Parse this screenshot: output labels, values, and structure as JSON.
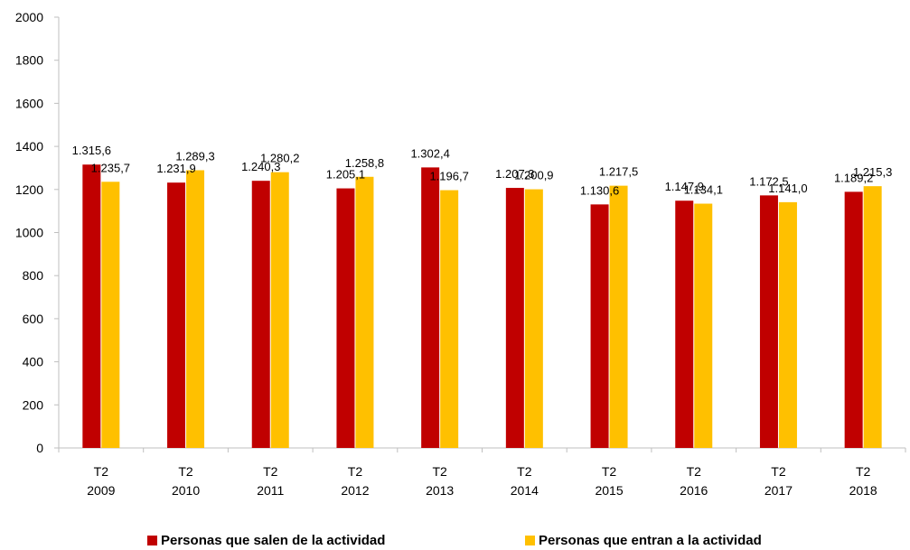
{
  "chart_data": {
    "type": "bar",
    "categories": [
      [
        "T2",
        "2009"
      ],
      [
        "T2",
        "2010"
      ],
      [
        "T2",
        "2011"
      ],
      [
        "T2",
        "2012"
      ],
      [
        "T2",
        "2013"
      ],
      [
        "T2",
        "2014"
      ],
      [
        "T2",
        "2015"
      ],
      [
        "T2",
        "2016"
      ],
      [
        "T2",
        "2017"
      ],
      [
        "T2",
        "2018"
      ]
    ],
    "series": [
      {
        "name": "Personas que salen de la actividad",
        "color": "#C00000",
        "values": [
          1315.6,
          1231.9,
          1240.3,
          1205.1,
          1302.4,
          1207.3,
          1130.6,
          1147.9,
          1172.5,
          1189.2
        ],
        "labels": [
          "1.315,6",
          "1.231,9",
          "1.240,3",
          "1.205,1",
          "1.302,4",
          "1.207,3",
          "1.130,6",
          "1.147,9",
          "1.172,5",
          "1.189,2"
        ]
      },
      {
        "name": "Personas que entran a la actividad",
        "color": "#FFC000",
        "values": [
          1235.7,
          1289.3,
          1280.2,
          1258.8,
          1196.7,
          1200.9,
          1217.5,
          1134.1,
          1141.0,
          1215.3
        ],
        "labels": [
          "1.235,7",
          "1.289,3",
          "1.280,2",
          "1.258,8",
          "1.196,7",
          "1.200,9",
          "1.217,5",
          "1.134,1",
          "1.141,0",
          "1.215,3"
        ]
      }
    ],
    "ylim": [
      0,
      2000
    ],
    "yticks": [
      0,
      200,
      400,
      600,
      800,
      1000,
      1200,
      1400,
      1600,
      1800,
      2000
    ],
    "grid": false,
    "legend_position": "bottom"
  }
}
